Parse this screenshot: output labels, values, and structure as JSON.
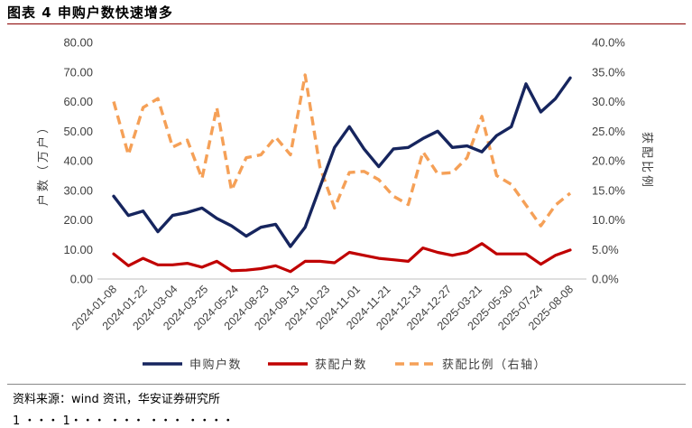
{
  "figure": {
    "title": "图表 4 申购户数快速增多",
    "source": "资料来源：wind 资讯，华安证券研究所",
    "cutoff_text": "1 ・・・ 1・・・ ・・・ ・・・ ・・・・"
  },
  "colors": {
    "subscribers": "#16255e",
    "winners": "#c00000",
    "ratio": "#f5a057",
    "title_rule": "#8a0000"
  },
  "chart_data": {
    "type": "line",
    "title": "申购户数快速增多",
    "ylabel_left": "户数（万户）",
    "ylabel_right": "获配比例",
    "ylim_left": [
      0,
      80
    ],
    "ylim_right": [
      0,
      40
    ],
    "yticks_left": [
      "0.00",
      "10.00",
      "20.00",
      "30.00",
      "40.00",
      "50.00",
      "60.00",
      "70.00",
      "80.00"
    ],
    "yticks_right": [
      "0.0%",
      "5.0%",
      "10.0%",
      "15.0%",
      "20.0%",
      "25.0%",
      "30.0%",
      "35.0%",
      "40.0%"
    ],
    "x_tick_labels": [
      "2024-01-08",
      "2024-01-22",
      "2024-03-04",
      "2024-03-25",
      "2024-05-24",
      "2024-08-23",
      "2024-09-13",
      "2024-10-23",
      "2024-11-01",
      "2024-11-21",
      "2024-12-13",
      "2024-12-27",
      "2025-03-21",
      "2025-05-30",
      "2025-07-24",
      "2025-08-08"
    ],
    "series": [
      {
        "name": "申购户数",
        "axis": "left",
        "style": "solid",
        "values": [
          28,
          21.5,
          23,
          16,
          21.5,
          22.5,
          24,
          20.5,
          18,
          14.5,
          17.5,
          18.5,
          11,
          17.5,
          31,
          44.5,
          51.5,
          44,
          38,
          44,
          44.5,
          47.5,
          50,
          44.5,
          45,
          43,
          48.5,
          51.5,
          66,
          56.5,
          61,
          68
        ]
      },
      {
        "name": "获配户数",
        "axis": "left",
        "style": "solid",
        "values": [
          8.5,
          4.5,
          7,
          4.8,
          4.8,
          5.3,
          4,
          6,
          2.8,
          3,
          3.5,
          4.5,
          2.5,
          6,
          6,
          5.5,
          9,
          8,
          7,
          6.5,
          6,
          10.5,
          9,
          8,
          9,
          12,
          8.5,
          8.5,
          8.5,
          5,
          8,
          9.8
        ]
      },
      {
        "name": "获配比例（右轴）",
        "axis": "right",
        "style": "dashed",
        "values": [
          30,
          21,
          29,
          30.5,
          22.3,
          23.5,
          17,
          29,
          15,
          20.5,
          21,
          24,
          21,
          34.5,
          19,
          12,
          18,
          18.2,
          16.8,
          14,
          12.6,
          21.5,
          17.8,
          18,
          20.5,
          27.5,
          17.5,
          16,
          12.5,
          9,
          12.5,
          14.5
        ]
      }
    ],
    "legend_position": "bottom"
  }
}
